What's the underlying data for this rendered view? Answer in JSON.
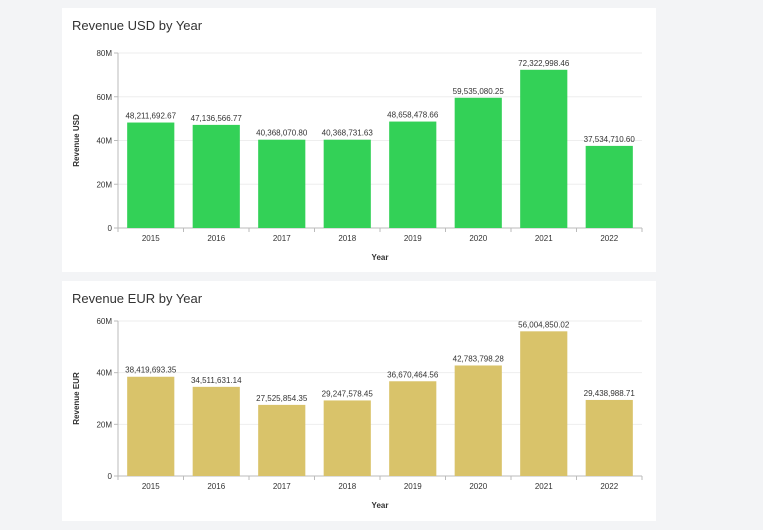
{
  "charts": [
    {
      "id": "usd",
      "title": "Revenue USD by Year",
      "type": "bar",
      "xlabel": "Year",
      "ylabel": "Revenue USD",
      "color": "#33d157",
      "ylim": [
        0,
        80000000
      ],
      "ticks": [
        {
          "value": 0,
          "label": "0"
        },
        {
          "value": 20000000,
          "label": "20M"
        },
        {
          "value": 40000000,
          "label": "40M"
        },
        {
          "value": 60000000,
          "label": "60M"
        },
        {
          "value": 80000000,
          "label": "80M"
        }
      ],
      "categories": [
        "2015",
        "2016",
        "2017",
        "2018",
        "2019",
        "2020",
        "2021",
        "2022"
      ],
      "values": [
        48211692.67,
        47136566.77,
        40368070.8,
        40368731.63,
        48658478.66,
        59535080.25,
        72322998.46,
        37534710.6
      ],
      "value_labels": [
        "48,211,692.67",
        "47,136,566.77",
        "40,368,070.80",
        "40,368,731.63",
        "48,658,478.66",
        "59,535,080.25",
        "72,322,998.46",
        "37,534,710.60"
      ]
    },
    {
      "id": "eur",
      "title": "Revenue EUR by Year",
      "type": "bar",
      "xlabel": "Year",
      "ylabel": "Revenue EUR",
      "color": "#d9c36a",
      "ylim": [
        0,
        60000000
      ],
      "ticks": [
        {
          "value": 0,
          "label": "0"
        },
        {
          "value": 20000000,
          "label": "20M"
        },
        {
          "value": 40000000,
          "label": "40M"
        },
        {
          "value": 60000000,
          "label": "60M"
        }
      ],
      "categories": [
        "2015",
        "2016",
        "2017",
        "2018",
        "2019",
        "2020",
        "2021",
        "2022"
      ],
      "values": [
        38419693.35,
        34511631.14,
        27525854.35,
        29247578.45,
        36670464.56,
        42783798.28,
        56004850.02,
        29438988.71
      ],
      "value_labels": [
        "38,419,693.35",
        "34,511,631.14",
        "27,525,854.35",
        "29,247,578.45",
        "36,670,464.56",
        "42,783,798.28",
        "56,004,850.02",
        "29,438,988.71"
      ]
    }
  ]
}
